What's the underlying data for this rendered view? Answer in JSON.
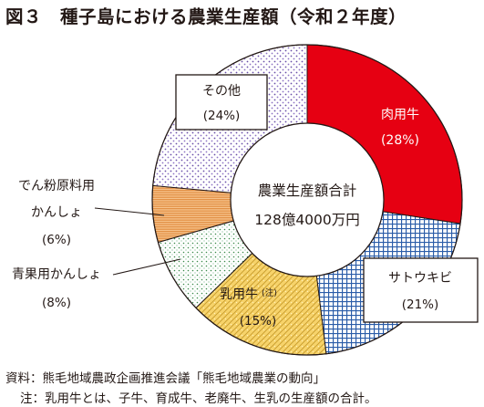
{
  "title": "図３　種子島における農業生産額（令和２年度）",
  "chart_data": {
    "type": "pie",
    "donut": true,
    "center_label": "農業生産額合計",
    "center_value": "128億4000万円",
    "slices": [
      {
        "label": "肉用牛",
        "pct": "(28%)",
        "value": 28,
        "color": "#e60012",
        "pattern": "red"
      },
      {
        "label": "サトウキビ",
        "pct": "(21%)",
        "value": 21,
        "color": "#2a5ca8",
        "pattern": "grid"
      },
      {
        "label": "乳用牛",
        "note": "(注)",
        "pct": "(15%)",
        "value": 15,
        "color": "#f5d36e",
        "pattern": "weave"
      },
      {
        "label": "青果用かんしょ",
        "pct": "(8%)",
        "value": 8,
        "color": "#3a8a4a",
        "pattern": "dots"
      },
      {
        "label": "でん粉原料用かんしょ",
        "label_lines": [
          "でん粉原料用",
          "かんしょ"
        ],
        "pct": "(6%)",
        "value": 6,
        "color": "#e8a25a",
        "pattern": "stripes"
      },
      {
        "label": "その他",
        "pct": "(24%)",
        "value": 24,
        "color": "#6a4fa8",
        "pattern": "purple"
      }
    ]
  },
  "source": "資料：熊毛地域農政企画推進会議「熊毛地域農業の動向」",
  "footnote": "注：乳用牛とは、子牛、育成牛、老廃牛、生乳の生産額の合計。"
}
